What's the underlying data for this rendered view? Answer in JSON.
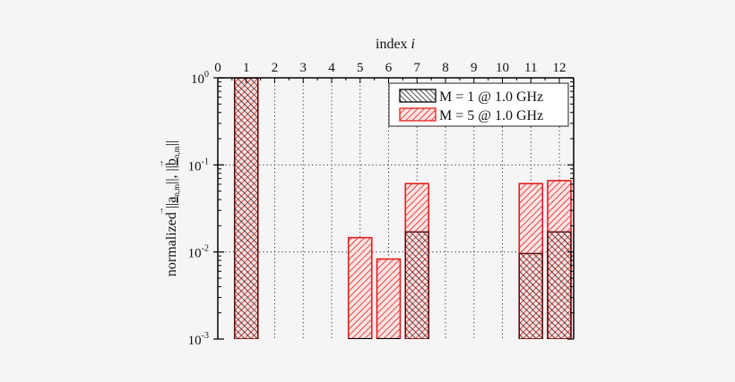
{
  "chart_data": {
    "type": "bar",
    "title": "",
    "xlabel": "index i",
    "xlabel_main": "index",
    "xlabel_var": "i",
    "ylabel": "normalized ||a_n,m||, ||b_n,m||",
    "ylabel_parts": {
      "prefix": "normalized",
      "a": "a",
      "b": "b",
      "sub": "n,m"
    },
    "yscale": "log",
    "ylim": [
      0.001,
      1
    ],
    "xlim": [
      0,
      12.5
    ],
    "x_ticks": [
      "0",
      "1",
      "2",
      "3",
      "4",
      "5",
      "6",
      "7",
      "8",
      "9",
      "10",
      "11",
      "12"
    ],
    "y_ticks": [
      {
        "base": "10",
        "exp": "0"
      },
      {
        "base": "10",
        "exp": "-1"
      },
      {
        "base": "10",
        "exp": "-2"
      },
      {
        "base": "10",
        "exp": "-3"
      }
    ],
    "grid": true,
    "legend_position": "upper right",
    "categories": [
      1,
      5,
      6,
      7,
      11,
      12
    ],
    "series": [
      {
        "name": "M = 1 @ 1.0 GHz",
        "color": "#000000",
        "hatch": "backslash",
        "values": [
          1.0,
          0.001,
          0.001,
          0.017,
          0.0096,
          0.017
        ]
      },
      {
        "name": "M = 5 @ 1.0 GHz",
        "color": "#e02020",
        "hatch": "slash",
        "values": [
          1.0,
          0.0146,
          0.0083,
          0.061,
          0.061,
          0.066
        ]
      }
    ]
  },
  "colors": {
    "red": "#e02020",
    "black": "#000000",
    "background": "#f5f5f5"
  }
}
